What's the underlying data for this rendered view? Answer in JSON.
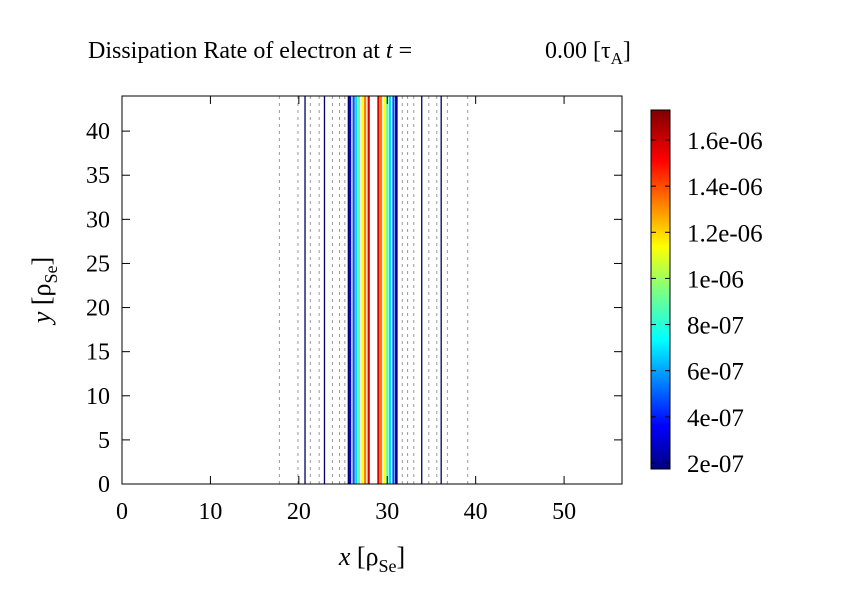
{
  "chart_data": {
    "type": "contour",
    "title": {
      "prefix": "Dissipation Rate of electron at",
      "var": "t",
      "eq": " =",
      "value": "0.00",
      "unit_open": "[τ",
      "unit_sub": "A",
      "unit_close": "]"
    },
    "xlabel": {
      "var": "x",
      "unit_open": "[ρ",
      "unit_sub": "Se",
      "unit_close": "]"
    },
    "ylabel": {
      "var": "y",
      "unit_open": "[ρ",
      "unit_sub": "Se",
      "unit_close": "]"
    },
    "xlim": [
      0,
      56.55
    ],
    "ylim": [
      0,
      43.98
    ],
    "xticks": [
      0,
      10,
      20,
      30,
      40,
      50
    ],
    "yticks": [
      0,
      5,
      10,
      15,
      20,
      25,
      30,
      35,
      40
    ],
    "colorbar": {
      "range": [
        1.74e-07,
        1.73e-06
      ],
      "colormap": "jet",
      "ticks": [
        {
          "value": 2e-07,
          "label": "2e-07"
        },
        {
          "value": 4e-07,
          "label": "4e-07"
        },
        {
          "value": 6e-07,
          "label": "6e-07"
        },
        {
          "value": 8e-07,
          "label": "8e-07"
        },
        {
          "value": 1e-06,
          "label": "1e-06"
        },
        {
          "value": 1.2e-06,
          "label": "1.2e-06"
        },
        {
          "value": 1.4e-06,
          "label": "1.4e-06"
        },
        {
          "value": 1.6e-06,
          "label": "1.6e-06"
        }
      ]
    },
    "contours": [
      {
        "x": 20.7,
        "level": 2e-07
      },
      {
        "x": 22.9,
        "level": 2e-07
      },
      {
        "x": 25.6,
        "level": 2e-07
      },
      {
        "x": 25.8,
        "level": 3e-07
      },
      {
        "x": 26.2,
        "level": 5e-07
      },
      {
        "x": 26.5,
        "level": 7e-07
      },
      {
        "x": 26.8,
        "level": 9e-07
      },
      {
        "x": 27.2,
        "level": 1.15e-06
      },
      {
        "x": 27.5,
        "level": 1.35e-06
      },
      {
        "x": 27.9,
        "level": 1.6e-06
      },
      {
        "x": 29.0,
        "level": 1.6e-06
      },
      {
        "x": 29.3,
        "level": 1.35e-06
      },
      {
        "x": 29.7,
        "level": 1.15e-06
      },
      {
        "x": 30.0,
        "level": 9e-07
      },
      {
        "x": 30.3,
        "level": 7e-07
      },
      {
        "x": 30.7,
        "level": 5e-07
      },
      {
        "x": 31.0,
        "level": 3e-07
      },
      {
        "x": 31.1,
        "level": 2e-07
      },
      {
        "x": 33.9,
        "level": 2e-07
      },
      {
        "x": 36.1,
        "level": 2e-07
      }
    ],
    "dashed_contours_x": [
      17.8,
      19.9,
      21.3,
      22.3,
      23.8,
      24.6,
      25.2,
      31.7,
      32.3,
      33.0,
      34.7,
      35.6,
      36.8,
      39.1
    ],
    "dashed_color": "#9a9a9a",
    "grid": false
  }
}
